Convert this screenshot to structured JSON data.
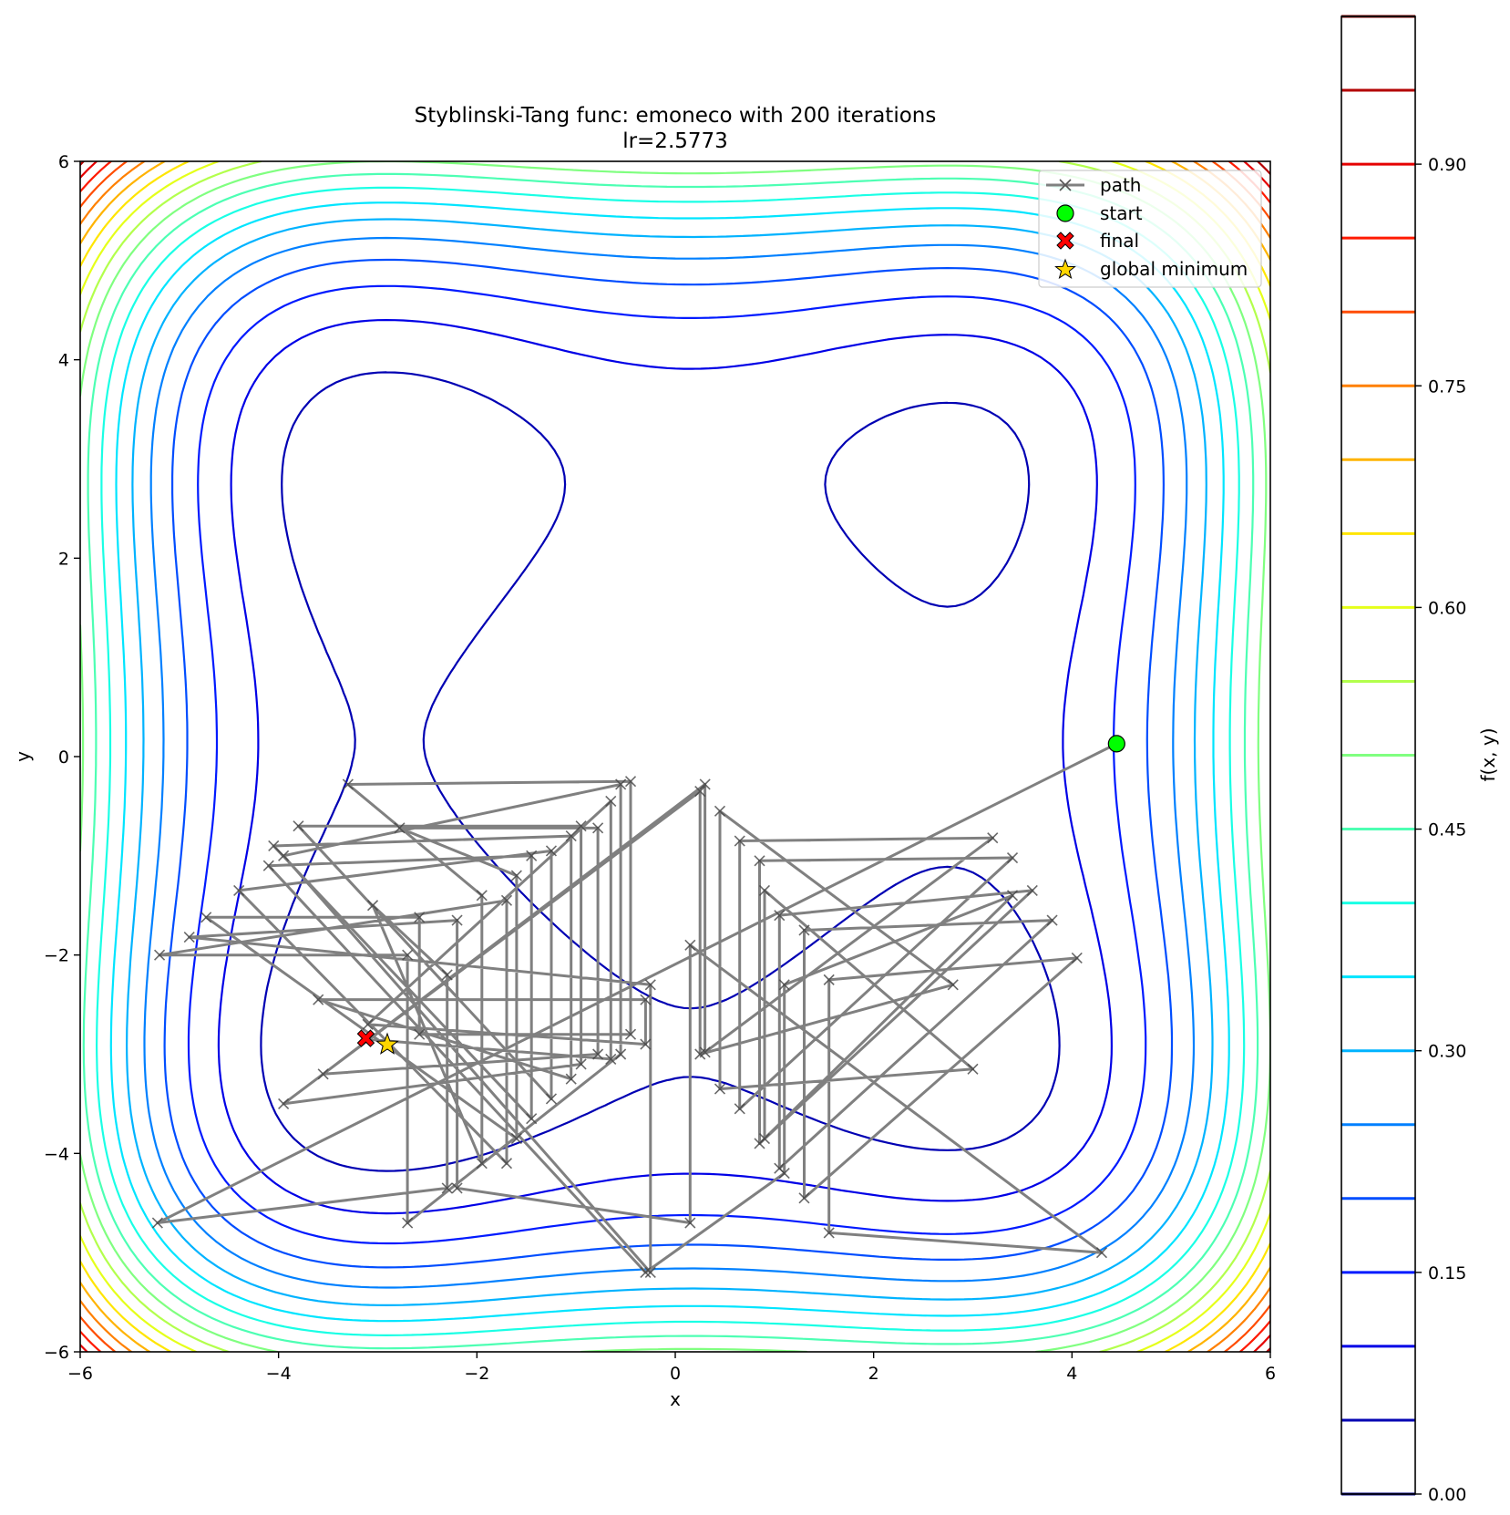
{
  "chart_data": {
    "type": "line",
    "title": "Styblinski-Tang func: emoneco with 200 iterations",
    "subtitle": "lr=2.5773",
    "xlabel": "x",
    "ylabel": "y",
    "xlim": [
      -6,
      6
    ],
    "ylim": [
      -6,
      6
    ],
    "xticks": [
      "−6",
      "−4",
      "−2",
      "0",
      "2",
      "4",
      "6"
    ],
    "yticks": [
      "−6",
      "−4",
      "−2",
      "0",
      "2",
      "4",
      "6"
    ],
    "grid": false,
    "legend_placement": "top-right",
    "legend": [
      {
        "label": "path",
        "marker": "x",
        "color": "#808080"
      },
      {
        "label": "start",
        "marker": "circle",
        "color": "#00ff00"
      },
      {
        "label": "final",
        "marker": "X",
        "color": "#ff0000"
      },
      {
        "label": "global minimum",
        "marker": "star",
        "color": "#ffd700"
      }
    ],
    "start_point": {
      "x": 4.45,
      "y": 0.13
    },
    "final_point": {
      "x": -3.12,
      "y": -2.84
    },
    "global_minimum": {
      "x": -2.9035,
      "y": -2.9035
    },
    "path": [
      [
        4.45,
        0.13
      ],
      [
        -5.22,
        -4.7
      ],
      [
        -2.3,
        -4.35
      ],
      [
        -2.3,
        -2.2
      ],
      [
        -3.05,
        -1.5
      ],
      [
        -1.95,
        -4.1
      ],
      [
        -1.95,
        -1.4
      ],
      [
        -3.3,
        -0.28
      ],
      [
        -0.45,
        -0.25
      ],
      [
        -0.45,
        -2.8
      ],
      [
        -2.58,
        -2.8
      ],
      [
        -2.58,
        -1.62
      ],
      [
        -4.73,
        -1.62
      ],
      [
        -1.6,
        -3.85
      ],
      [
        -1.6,
        -1.2
      ],
      [
        -2.78,
        -0.72
      ],
      [
        -0.78,
        -0.72
      ],
      [
        -0.78,
        -3.0
      ],
      [
        -3.55,
        -3.2
      ],
      [
        0.3,
        -0.28
      ],
      [
        0.3,
        -2.98
      ],
      [
        3.2,
        -0.82
      ],
      [
        0.65,
        -0.85
      ],
      [
        0.65,
        -3.55
      ],
      [
        3.4,
        -1.02
      ],
      [
        0.85,
        -1.05
      ],
      [
        0.85,
        -3.9
      ],
      [
        3.6,
        -1.35
      ],
      [
        1.05,
        -1.6
      ],
      [
        1.05,
        -4.15
      ],
      [
        3.8,
        -1.65
      ],
      [
        1.3,
        -1.75
      ],
      [
        1.3,
        -4.45
      ],
      [
        4.05,
        -2.03
      ],
      [
        1.55,
        -2.25
      ],
      [
        1.55,
        -4.8
      ],
      [
        4.3,
        -5.0
      ],
      [
        0.15,
        -1.9
      ],
      [
        0.15,
        -4.7
      ],
      [
        -2.2,
        -4.35
      ],
      [
        -2.2,
        -1.65
      ],
      [
        -4.9,
        -1.82
      ],
      [
        -0.25,
        -2.3
      ],
      [
        -0.25,
        -5.2
      ],
      [
        -3.95,
        -1.0
      ],
      [
        -0.55,
        -0.28
      ],
      [
        -0.55,
        -3.0
      ],
      [
        -2.7,
        -4.7
      ],
      [
        -2.7,
        -2.0
      ],
      [
        -5.2,
        -2.0
      ],
      [
        -1.7,
        -1.45
      ],
      [
        -1.7,
        -4.1
      ],
      [
        -4.4,
        -1.35
      ],
      [
        -1.25,
        -0.95
      ],
      [
        -1.25,
        -3.45
      ],
      [
        -3.8,
        -0.7
      ],
      [
        -0.95,
        -0.7
      ],
      [
        -0.95,
        -3.1
      ],
      [
        -3.95,
        -3.5
      ],
      [
        0.25,
        -0.35
      ],
      [
        0.25,
        -3.0
      ],
      [
        2.8,
        -2.3
      ],
      [
        0.45,
        -0.55
      ],
      [
        0.45,
        -3.35
      ],
      [
        3.0,
        -3.15
      ],
      [
        0.9,
        -1.35
      ],
      [
        0.9,
        -3.85
      ],
      [
        3.4,
        -1.4
      ],
      [
        1.1,
        -2.3
      ],
      [
        1.1,
        -4.2
      ],
      [
        -0.3,
        -5.2
      ],
      [
        -4.1,
        -1.1
      ],
      [
        -1.45,
        -1.0
      ],
      [
        -1.45,
        -3.65
      ],
      [
        -4.05,
        -0.9
      ],
      [
        -1.05,
        -0.8
      ],
      [
        -1.05,
        -3.25
      ],
      [
        -3.6,
        -2.45
      ],
      [
        -0.3,
        -2.45
      ],
      [
        -0.3,
        -2.9
      ],
      [
        -3.1,
        -2.7
      ],
      [
        -0.65,
        -0.45
      ],
      [
        -0.65,
        -3.05
      ],
      [
        -3.1,
        -2.85
      ]
    ]
  },
  "colorbar": {
    "label": "f(x, y)",
    "ticks": [
      "0.00",
      "0.15",
      "0.30",
      "0.45",
      "0.60",
      "0.75",
      "0.90"
    ],
    "tick_values": [
      0.0,
      0.15,
      0.3,
      0.45,
      0.6,
      0.75,
      0.9
    ],
    "range": [
      0,
      1
    ],
    "levels": [
      0.0,
      0.05,
      0.1,
      0.15,
      0.2,
      0.25,
      0.3,
      0.35,
      0.4,
      0.45,
      0.5,
      0.55,
      0.6,
      0.65,
      0.7,
      0.75,
      0.8,
      0.85,
      0.9,
      0.95,
      1.0
    ],
    "colormap": "jet"
  }
}
